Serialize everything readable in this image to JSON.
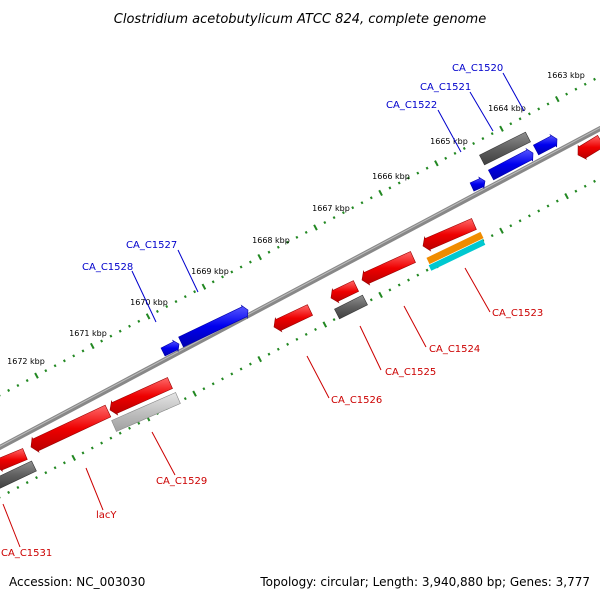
{
  "title": "Clostridium acetobutylicum ATCC 824, complete genome",
  "footer": {
    "accession": "Accession: NC_003030",
    "summary": "Topology: circular; Length: 3,940,880 bp; Genes: 3,777"
  },
  "ruler_ticks": [
    "1663 kbp",
    "1664 kbp",
    "1665 kbp",
    "1666 kbp",
    "1667 kbp",
    "1668 kbp",
    "1669 kbp",
    "1670 kbp",
    "1671 kbp",
    "1672 kbp"
  ],
  "forward_labels": [
    "CA_C1520",
    "CA_C1521",
    "CA_C1522",
    "CA_C1527",
    "CA_C1528"
  ],
  "reverse_labels": [
    "CA_C1523",
    "CA_C1524",
    "CA_C1525",
    "CA_C1526",
    "CA_C1529",
    "lacY",
    "CA_C1531"
  ],
  "colors": {
    "forward_gene": "#0000ee",
    "reverse_gene": "#ee0000",
    "pseudo_dark": "#606060",
    "pseudo_light": "#c0c0c0",
    "orange_feature": "#f08c00",
    "cyan_feature": "#00c8d0",
    "backbone": "#888888",
    "dots": "#228822",
    "forward_label": "#0000cc",
    "reverse_label": "#cc0000"
  }
}
